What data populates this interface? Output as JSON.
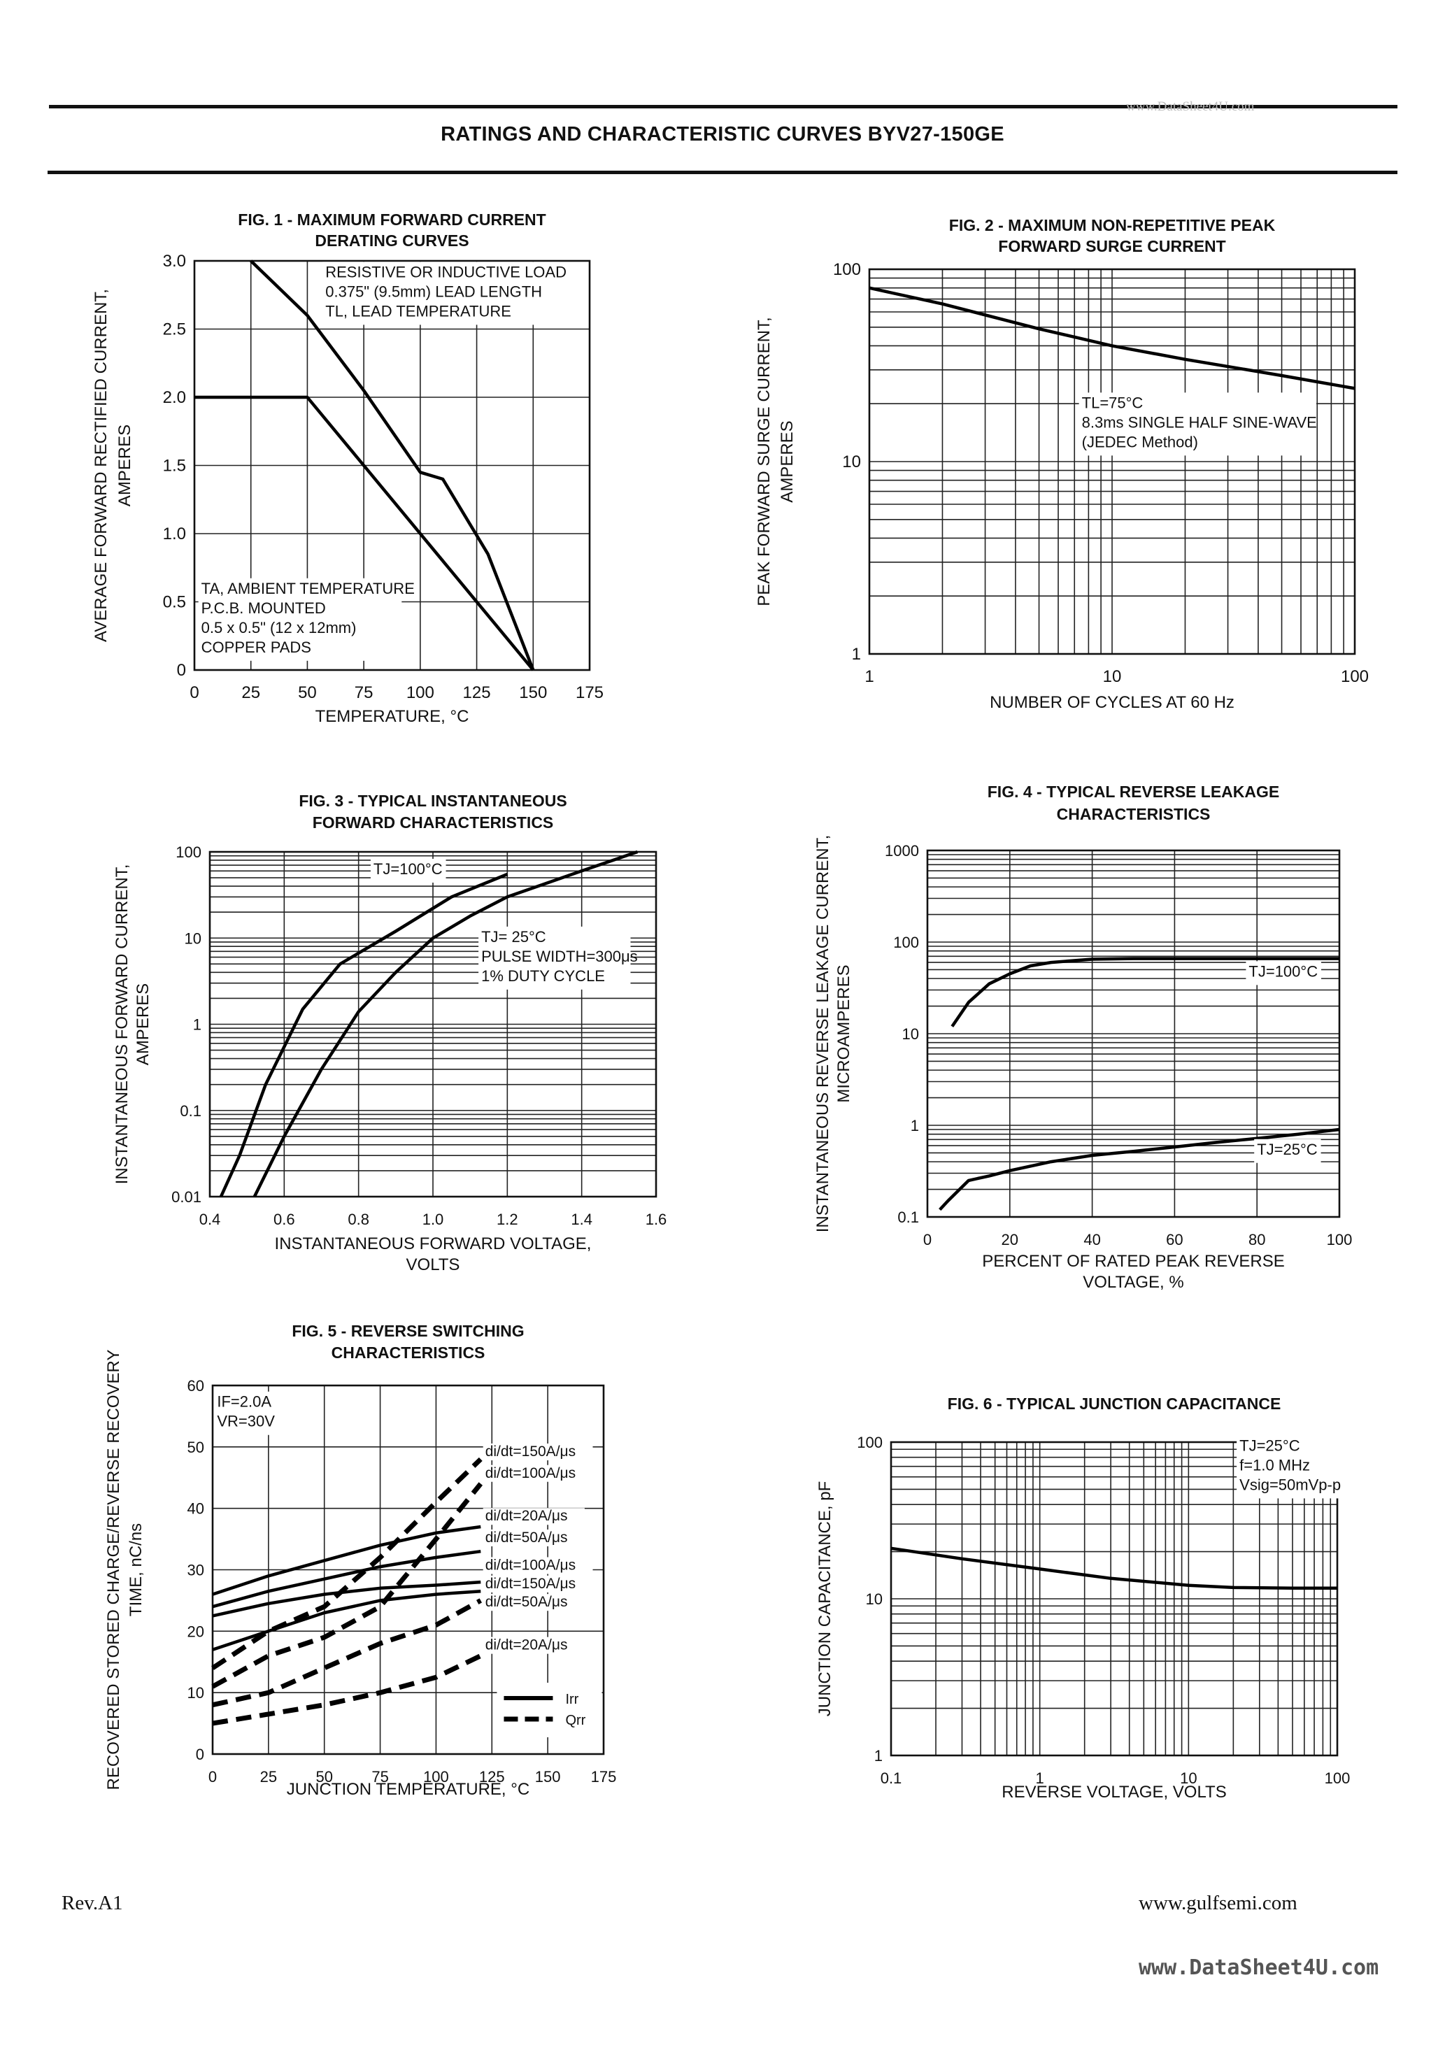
{
  "page": {
    "title": "RATINGS AND CHARACTERISTIC CURVES BYV27-150GE",
    "watermark_top": "www.DataSheet4U.com",
    "footer_left": "Rev.A1",
    "footer_right": "www.gulfsemi.com",
    "watermark_bottom": "www.DataSheet4U.com"
  },
  "chart_data": [
    {
      "id": "fig1",
      "type": "line",
      "title": [
        "FIG. 1 - MAXIMUM FORWARD CURRENT",
        "DERATING CURVES"
      ],
      "xlabel": [
        "TEMPERATURE, °C"
      ],
      "ylabel": [
        "AVERAGE FORWARD RECTIFIED CURRENT,",
        "AMPERES"
      ],
      "xlim": [
        0,
        175
      ],
      "ylim": [
        0,
        3.0
      ],
      "xscale": "linear",
      "yscale": "linear",
      "xticks": [
        0,
        25,
        50,
        75,
        100,
        125,
        150,
        175
      ],
      "xticklabels": [
        "0",
        "25",
        "50",
        "75",
        "100",
        "125",
        "150",
        "175"
      ],
      "yticks": [
        0,
        0.5,
        1.0,
        1.5,
        2.0,
        2.5,
        3.0
      ],
      "yticklabels": [
        "0",
        "0.5",
        "1.0",
        "1.5",
        "2.0",
        "2.5",
        "3.0"
      ],
      "grid": true,
      "series": [
        {
          "x": [
            25,
            50,
            75,
            100,
            110,
            130,
            150
          ],
          "y": [
            3.0,
            2.6,
            2.05,
            1.45,
            1.4,
            0.85,
            0
          ],
          "style": "solid"
        },
        {
          "x": [
            0,
            50,
            150
          ],
          "y": [
            2.0,
            2.0,
            0
          ],
          "style": "solid"
        }
      ],
      "annotations": [
        {
          "lines": [
            "RESISTIVE OR INDUCTIVE LOAD",
            "0.375\" (9.5mm) LEAD LENGTH",
            "TL, LEAD TEMPERATURE"
          ],
          "x": 58,
          "y": 2.88
        },
        {
          "lines": [
            "TA, AMBIENT TEMPERATURE",
            "P.C.B. MOUNTED",
            "0.5 x 0.5\" (12 x 12mm)",
            "COPPER PADS"
          ],
          "x": 3,
          "y": 0.56
        }
      ]
    },
    {
      "id": "fig2",
      "type": "line",
      "title": [
        "FIG. 2 - MAXIMUM NON-REPETITIVE PEAK",
        "FORWARD SURGE CURRENT"
      ],
      "xlabel": [
        "NUMBER OF CYCLES AT 60 Hz"
      ],
      "ylabel": [
        "PEAK FORWARD SURGE CURRENT,",
        "AMPERES"
      ],
      "xlim": [
        1,
        100
      ],
      "ylim": [
        1,
        100
      ],
      "xscale": "log",
      "yscale": "log",
      "xticks": [
        1,
        10,
        100
      ],
      "xticklabels": [
        "1",
        "10",
        "100"
      ],
      "yticks": [
        1,
        10,
        100
      ],
      "yticklabels": [
        "1",
        "10",
        "100"
      ],
      "grid": true,
      "series": [
        {
          "x": [
            1,
            2,
            5,
            10,
            20,
            50,
            100
          ],
          "y": [
            80,
            66,
            49,
            40,
            34,
            28,
            24
          ],
          "style": "solid"
        }
      ],
      "annotations": [
        {
          "lines": [
            "TL=75°C",
            "8.3ms SINGLE HALF SINE-WAVE",
            "(JEDEC Method)"
          ],
          "x": 7.5,
          "y": 19
        }
      ]
    },
    {
      "id": "fig3",
      "type": "line",
      "title": [
        "FIG. 3 - TYPICAL INSTANTANEOUS",
        "FORWARD CHARACTERISTICS"
      ],
      "xlabel": [
        "INSTANTANEOUS FORWARD VOLTAGE,",
        "VOLTS"
      ],
      "ylabel": [
        "INSTANTANEOUS FORWARD CURRENT,",
        "AMPERES"
      ],
      "xlim": [
        0.4,
        1.6
      ],
      "ylim": [
        0.01,
        100
      ],
      "xscale": "linear",
      "yscale": "log",
      "xticks": [
        0.4,
        0.6,
        0.8,
        1.0,
        1.2,
        1.4,
        1.6
      ],
      "xticklabels": [
        "0.4",
        "0.6",
        "0.8",
        "1.0",
        "1.2",
        "1.4",
        "1.6"
      ],
      "yticks": [
        0.01,
        0.1,
        1,
        10,
        100
      ],
      "yticklabels": [
        "0.01",
        "0.1",
        "1",
        "10",
        "100"
      ],
      "grid": true,
      "series": [
        {
          "name": "TJ=100°C",
          "x": [
            0.43,
            0.48,
            0.55,
            0.65,
            0.75,
            0.9,
            1.05,
            1.2
          ],
          "y": [
            0.01,
            0.03,
            0.2,
            1.5,
            5,
            12,
            30,
            55
          ],
          "style": "solid"
        },
        {
          "name": "TJ= 25°C",
          "x": [
            0.52,
            0.6,
            0.7,
            0.8,
            0.9,
            1.0,
            1.1,
            1.2,
            1.4,
            1.55
          ],
          "y": [
            0.01,
            0.05,
            0.3,
            1.4,
            4,
            10,
            18,
            30,
            60,
            100
          ],
          "style": "solid"
        }
      ],
      "annotations": [
        {
          "lines": [
            "TJ=100°C"
          ],
          "x": 0.84,
          "y": 55
        },
        {
          "lines": [
            "TJ= 25°C",
            "PULSE WIDTH=300μs",
            "1% DUTY CYCLE"
          ],
          "x": 1.13,
          "y": 9
        }
      ]
    },
    {
      "id": "fig4",
      "type": "line",
      "title": [
        "FIG. 4 - TYPICAL REVERSE LEAKAGE",
        "CHARACTERISTICS"
      ],
      "xlabel": [
        "PERCENT OF RATED PEAK REVERSE",
        "VOLTAGE, %"
      ],
      "ylabel": [
        "INSTANTANEOUS REVERSE LEAKAGE CURRENT,",
        "MICROAMPERES"
      ],
      "xlim": [
        0,
        100
      ],
      "ylim": [
        0.1,
        1000
      ],
      "xscale": "linear",
      "yscale": "log",
      "xticks": [
        0,
        20,
        40,
        60,
        80,
        100
      ],
      "xticklabels": [
        "0",
        "20",
        "40",
        "60",
        "80",
        "100"
      ],
      "yticks": [
        0.1,
        1,
        10,
        100,
        1000
      ],
      "yticklabels": [
        "0.1",
        "1",
        "10",
        "100",
        "1000"
      ],
      "grid": true,
      "series": [
        {
          "name": "TJ=100°C",
          "x": [
            6,
            10,
            15,
            20,
            25,
            30,
            40,
            50,
            60,
            70,
            80,
            90,
            100
          ],
          "y": [
            12,
            22,
            35,
            45,
            55,
            60,
            65,
            66,
            66,
            66,
            66,
            66,
            66
          ],
          "style": "solid"
        },
        {
          "name": "TJ=25°C",
          "x": [
            3,
            5,
            10,
            15,
            20,
            30,
            40,
            50,
            60,
            70,
            80,
            90,
            100
          ],
          "y": [
            0.12,
            0.15,
            0.25,
            0.28,
            0.32,
            0.4,
            0.47,
            0.52,
            0.58,
            0.65,
            0.72,
            0.8,
            0.9
          ],
          "style": "solid"
        }
      ],
      "annotations": [
        {
          "lines": [
            "TJ=100°C"
          ],
          "x": 78,
          "y": 42
        },
        {
          "lines": [
            "TJ=25°C"
          ],
          "x": 80,
          "y": 0.48
        }
      ]
    },
    {
      "id": "fig5",
      "type": "line",
      "title": [
        "FIG. 5 - REVERSE SWITCHING",
        "CHARACTERISTICS"
      ],
      "xlabel": [
        "JUNCTION TEMPERATURE, °C"
      ],
      "ylabel": [
        "RECOVERED STORED CHARGE/REVERSE RECOVERY",
        "TIME, nC/ns"
      ],
      "xlim": [
        0,
        175
      ],
      "ylim": [
        0,
        60
      ],
      "xscale": "linear",
      "yscale": "linear",
      "xticks": [
        0,
        25,
        50,
        75,
        100,
        125,
        150,
        175
      ],
      "xticklabels": [
        "0",
        "25",
        "50",
        "75",
        "100",
        "125",
        "150",
        "175"
      ],
      "yticks": [
        0,
        10,
        20,
        30,
        40,
        50,
        60
      ],
      "yticklabels": [
        "0",
        "10",
        "20",
        "30",
        "40",
        "50",
        "60"
      ],
      "grid": true,
      "series": [
        {
          "x": [
            0,
            25,
            50,
            75,
            100,
            120
          ],
          "y": [
            26,
            29,
            31.5,
            34,
            36,
            37
          ],
          "style": "solid"
        },
        {
          "x": [
            0,
            25,
            50,
            75,
            100,
            120
          ],
          "y": [
            24,
            26.5,
            28.5,
            30.5,
            32,
            33
          ],
          "style": "solid"
        },
        {
          "x": [
            0,
            25,
            50,
            75,
            100,
            120
          ],
          "y": [
            22.5,
            24.5,
            26,
            27,
            27.5,
            28
          ],
          "style": "solid"
        },
        {
          "x": [
            0,
            25,
            50,
            75,
            100,
            120
          ],
          "y": [
            17,
            20,
            23,
            25,
            26,
            26.5
          ],
          "style": "solid"
        },
        {
          "x": [
            0,
            25,
            50,
            75,
            100,
            120
          ],
          "y": [
            14,
            20,
            24,
            32,
            41,
            48
          ],
          "style": "dashed"
        },
        {
          "x": [
            0,
            25,
            50,
            75,
            100,
            120
          ],
          "y": [
            11,
            16,
            19,
            24,
            35,
            44
          ],
          "style": "dashed"
        },
        {
          "x": [
            0,
            25,
            50,
            75,
            100,
            120
          ],
          "y": [
            8,
            10,
            14,
            18,
            21,
            25
          ],
          "style": "dashed"
        },
        {
          "x": [
            0,
            25,
            50,
            75,
            100,
            120
          ],
          "y": [
            5,
            6.5,
            8,
            10,
            12.5,
            16
          ],
          "style": "dashed"
        }
      ],
      "labels": [
        {
          "text": "di/dt=150A/μs",
          "x": 122,
          "y": 48.5
        },
        {
          "text": "di/dt=100A/μs",
          "x": 122,
          "y": 45
        },
        {
          "text": "di/dt=20A/μs",
          "x": 122,
          "y": 38
        },
        {
          "text": "di/dt=50A/μs",
          "x": 122,
          "y": 34.5
        },
        {
          "text": "di/dt=100A/μs",
          "x": 122,
          "y": 30
        },
        {
          "text": "di/dt=150A/μs",
          "x": 122,
          "y": 27
        },
        {
          "text": "di/dt=50A/μs",
          "x": 122,
          "y": 24
        },
        {
          "text": "di/dt=20A/μs",
          "x": 122,
          "y": 17
        }
      ],
      "annotations": [
        {
          "lines": [
            "IF=2.0A",
            "VR=30V"
          ],
          "x": 2,
          "y": 56.5
        }
      ],
      "legend": [
        {
          "label": "Irr",
          "style": "solid"
        },
        {
          "label": "Qrr",
          "style": "dashed"
        }
      ]
    },
    {
      "id": "fig6",
      "type": "line",
      "title": [
        "FIG. 6 - TYPICAL JUNCTION CAPACITANCE"
      ],
      "xlabel": [
        "REVERSE VOLTAGE, VOLTS"
      ],
      "ylabel": [
        "JUNCTION CAPACITANCE, pF"
      ],
      "xlim": [
        0.1,
        100
      ],
      "ylim": [
        1,
        100
      ],
      "xscale": "log",
      "yscale": "log",
      "xticks": [
        0.1,
        1,
        10,
        100
      ],
      "xticklabels": [
        "0.1",
        "1",
        "10",
        "100"
      ],
      "yticks": [
        1,
        10,
        100
      ],
      "yticklabels": [
        "1",
        "10",
        "100"
      ],
      "grid": true,
      "series": [
        {
          "x": [
            0.1,
            0.3,
            1,
            3,
            10,
            20,
            50,
            100
          ],
          "y": [
            21,
            18,
            15.5,
            13.5,
            12.2,
            11.8,
            11.7,
            11.7
          ],
          "style": "solid"
        }
      ],
      "annotations": [
        {
          "lines": [
            "TJ=25°C",
            "f=1.0 MHz",
            "Vsig=50mVp-p"
          ],
          "x": 22,
          "y": 88
        }
      ]
    }
  ]
}
